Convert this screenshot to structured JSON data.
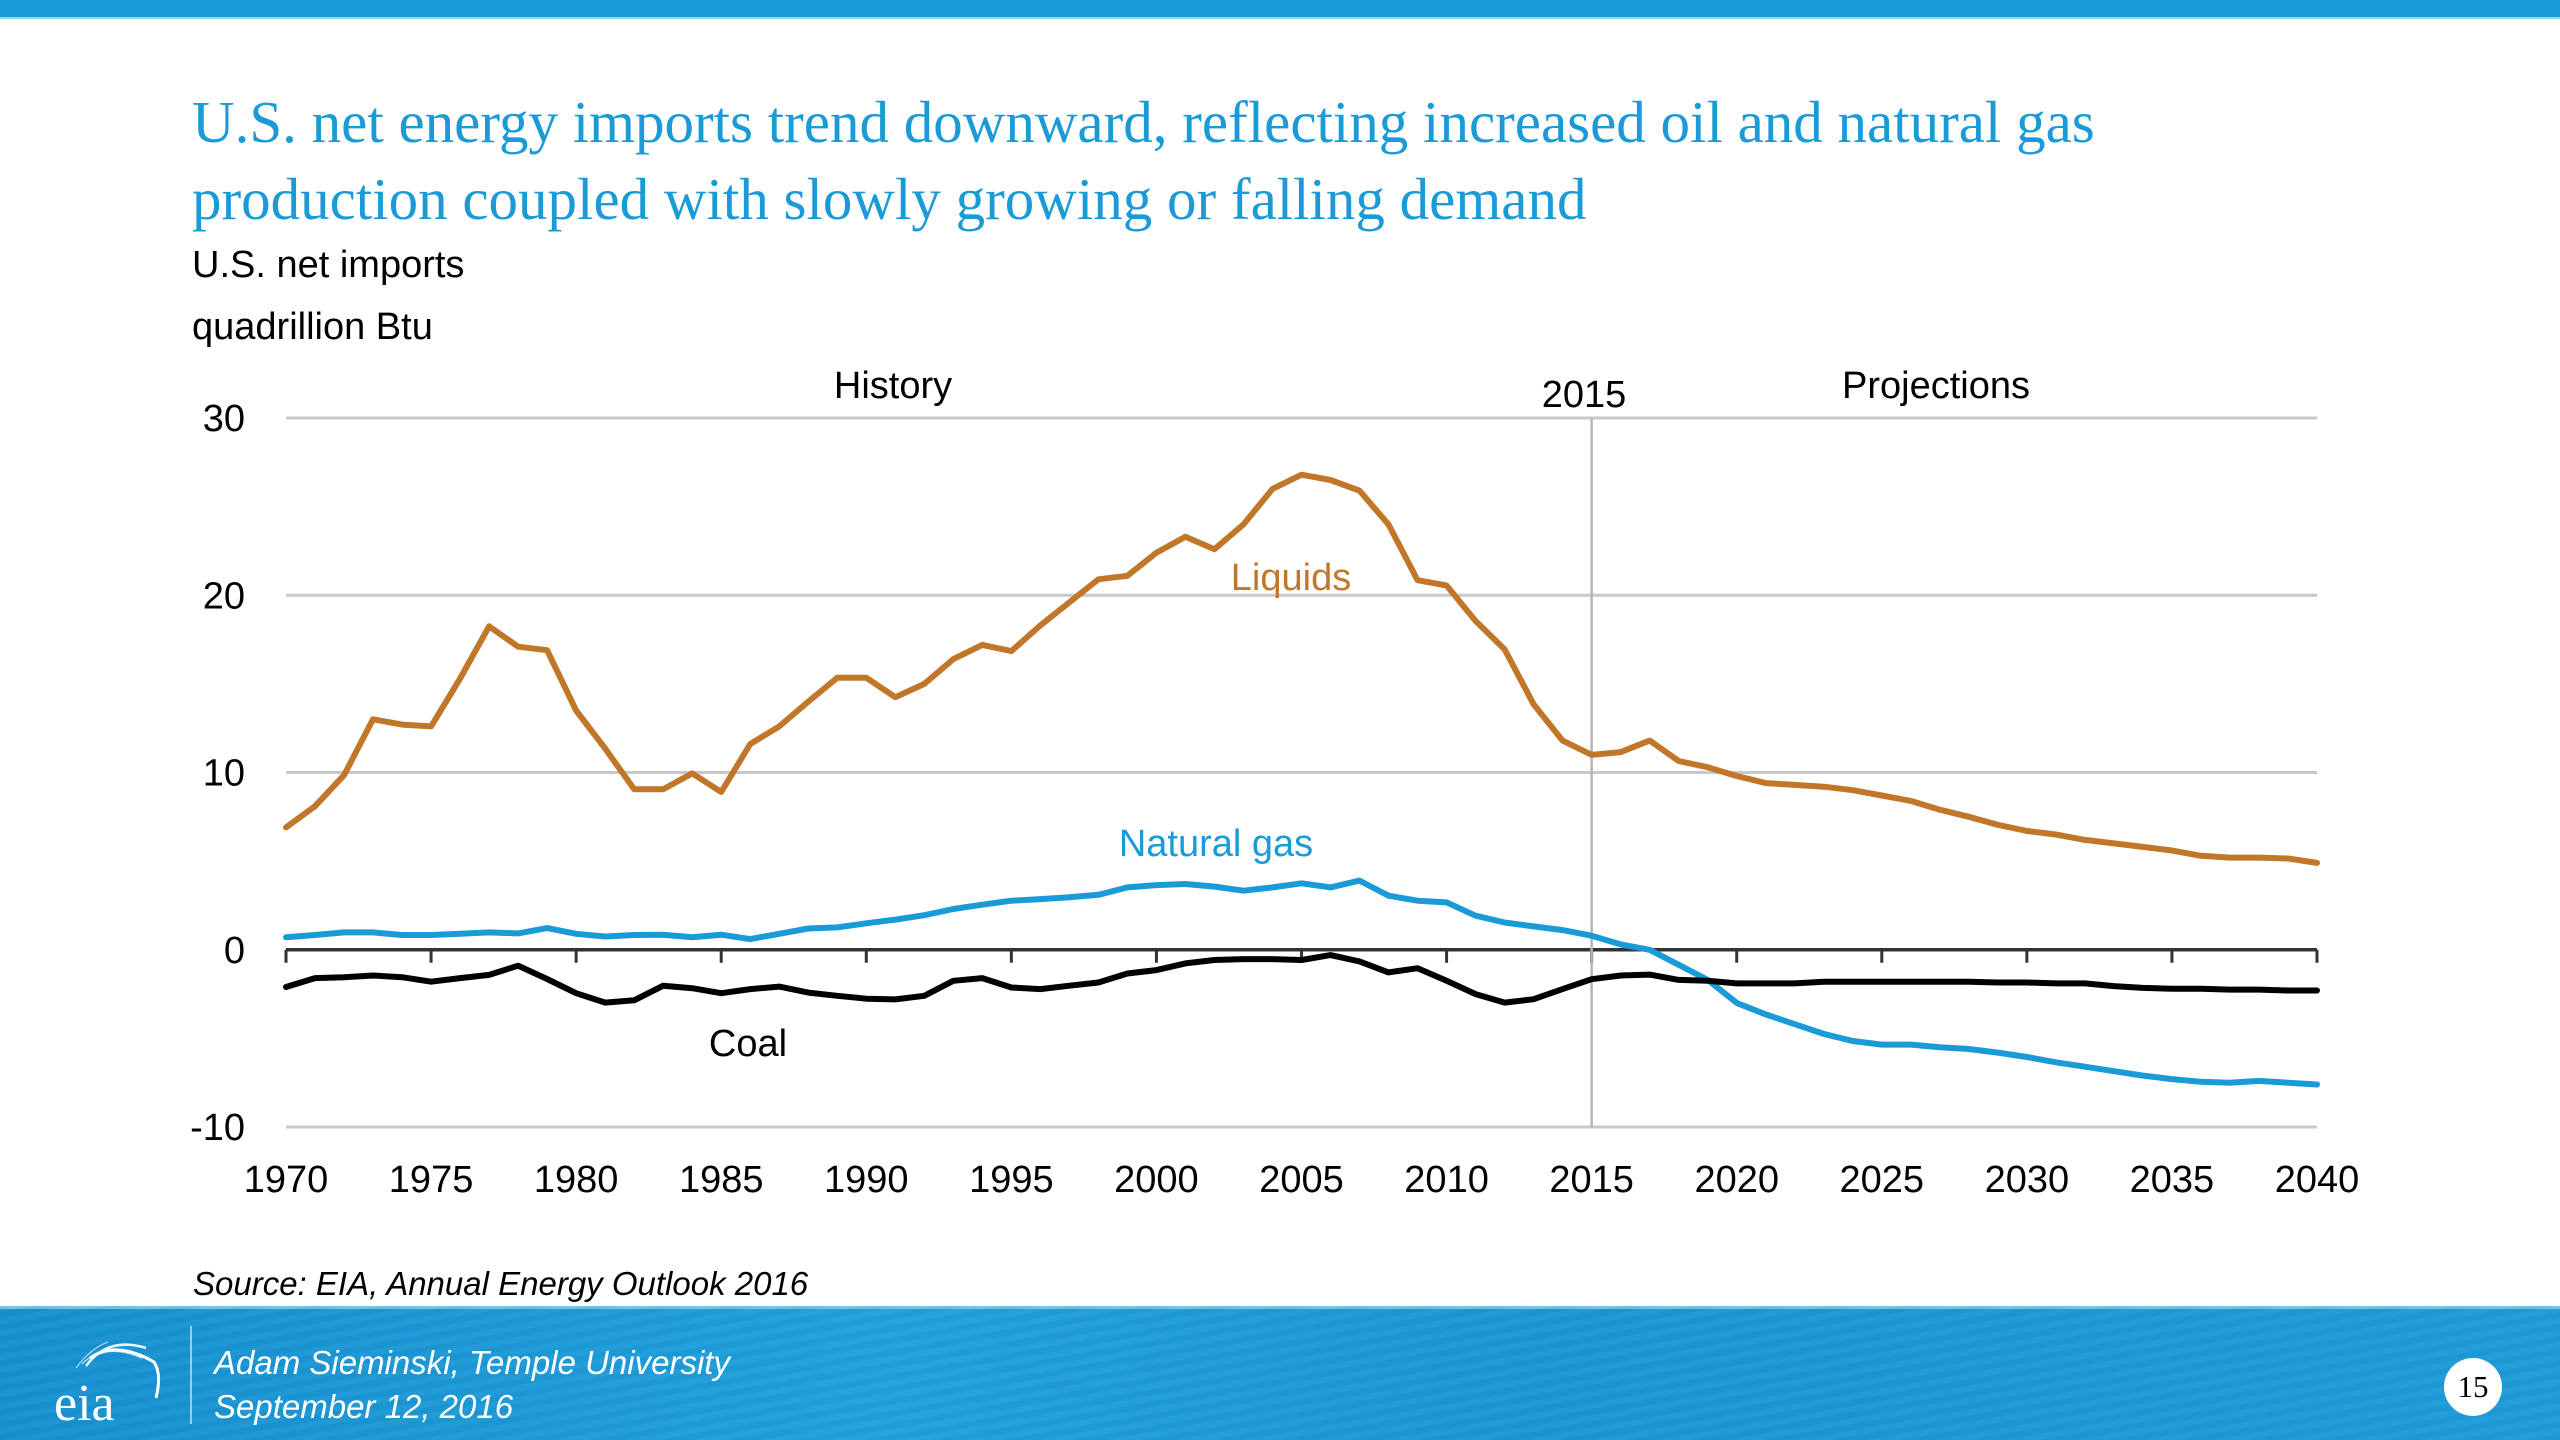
{
  "slide": {
    "title_line1": "U.S. net energy imports trend downward, reflecting increased oil and natural gas",
    "title_line2": "production coupled with slowly growing or falling demand",
    "accent_color": "#1a9ad6",
    "source": "Source:  EIA, Annual Energy Outlook 2016",
    "footer": {
      "logo": "eia-logo",
      "author": "Adam Sieminski, Temple University",
      "date": "September 12, 2016",
      "page_number": "15"
    }
  },
  "chart_data": {
    "type": "line",
    "title": "U.S. net imports",
    "ylabel": "quadrillion Btu",
    "xlabel": "",
    "xlim": [
      1970,
      2040
    ],
    "ylim": [
      -10,
      30
    ],
    "grid": true,
    "yticks": [
      30,
      20,
      10,
      0,
      -10
    ],
    "xticks": [
      1970,
      1975,
      1980,
      1985,
      1990,
      1995,
      2000,
      2005,
      2010,
      2015,
      2020,
      2025,
      2030,
      2035,
      2040
    ],
    "annotations": {
      "history": "History",
      "projections": "Projections",
      "divider_year": 2015,
      "divider_label": "2015"
    },
    "x_start": 1970,
    "series": [
      {
        "name": "Liquids",
        "color": "#c0772a",
        "values": [
          6.9,
          8.1,
          9.85,
          13.0,
          12.7,
          12.6,
          15.3,
          18.25,
          17.1,
          16.9,
          13.5,
          11.35,
          9.05,
          9.05,
          9.95,
          8.9,
          11.6,
          12.6,
          14.0,
          15.35,
          15.35,
          14.25,
          15.0,
          16.4,
          17.2,
          16.85,
          18.3,
          19.6,
          20.9,
          21.1,
          22.4,
          23.3,
          22.6,
          24.0,
          26.0,
          26.8,
          26.5,
          25.9,
          24.0,
          20.85,
          20.55,
          18.55,
          16.95,
          13.85,
          11.8,
          11.0,
          11.15,
          11.8,
          10.65,
          10.3,
          9.8,
          9.4,
          9.3,
          9.2,
          9.0,
          8.7,
          8.4,
          7.9,
          7.5,
          7.05,
          6.7,
          6.5,
          6.2,
          6.0,
          5.8,
          5.6,
          5.3,
          5.2,
          5.2,
          5.15,
          4.9
        ]
      },
      {
        "name": "Natural gas",
        "color": "#1a9ad6",
        "values": [
          0.7,
          0.83,
          0.98,
          0.98,
          0.83,
          0.83,
          0.9,
          0.98,
          0.92,
          1.22,
          0.9,
          0.75,
          0.83,
          0.85,
          0.7,
          0.85,
          0.6,
          0.9,
          1.2,
          1.26,
          1.49,
          1.7,
          1.95,
          2.3,
          2.54,
          2.77,
          2.86,
          2.96,
          3.1,
          3.52,
          3.65,
          3.71,
          3.56,
          3.33,
          3.52,
          3.75,
          3.52,
          3.9,
          3.05,
          2.77,
          2.67,
          1.92,
          1.54,
          1.32,
          1.11,
          0.79,
          0.3,
          0.0,
          -0.85,
          -1.7,
          -3.0,
          -3.65,
          -4.2,
          -4.75,
          -5.15,
          -5.35,
          -5.35,
          -5.5,
          -5.6,
          -5.8,
          -6.05,
          -6.35,
          -6.6,
          -6.85,
          -7.1,
          -7.3,
          -7.45,
          -7.5,
          -7.4,
          -7.5,
          -7.6
        ]
      },
      {
        "name": "Coal",
        "color": "#000000",
        "values": [
          -2.1,
          -1.6,
          -1.55,
          -1.45,
          -1.55,
          -1.8,
          -1.6,
          -1.42,
          -0.9,
          -1.65,
          -2.45,
          -2.98,
          -2.85,
          -2.03,
          -2.17,
          -2.45,
          -2.22,
          -2.08,
          -2.42,
          -2.6,
          -2.76,
          -2.8,
          -2.6,
          -1.75,
          -1.6,
          -2.13,
          -2.22,
          -2.03,
          -1.85,
          -1.34,
          -1.15,
          -0.77,
          -0.58,
          -0.53,
          -0.53,
          -0.58,
          -0.3,
          -0.66,
          -1.28,
          -1.04,
          -1.75,
          -2.5,
          -2.98,
          -2.79,
          -2.22,
          -1.66,
          -1.45,
          -1.4,
          -1.7,
          -1.75,
          -1.9,
          -1.9,
          -1.9,
          -1.8,
          -1.8,
          -1.8,
          -1.8,
          -1.8,
          -1.8,
          -1.85,
          -1.85,
          -1.9,
          -1.9,
          -2.05,
          -2.15,
          -2.2,
          -2.2,
          -2.25,
          -2.25,
          -2.3,
          -2.3
        ]
      }
    ]
  }
}
